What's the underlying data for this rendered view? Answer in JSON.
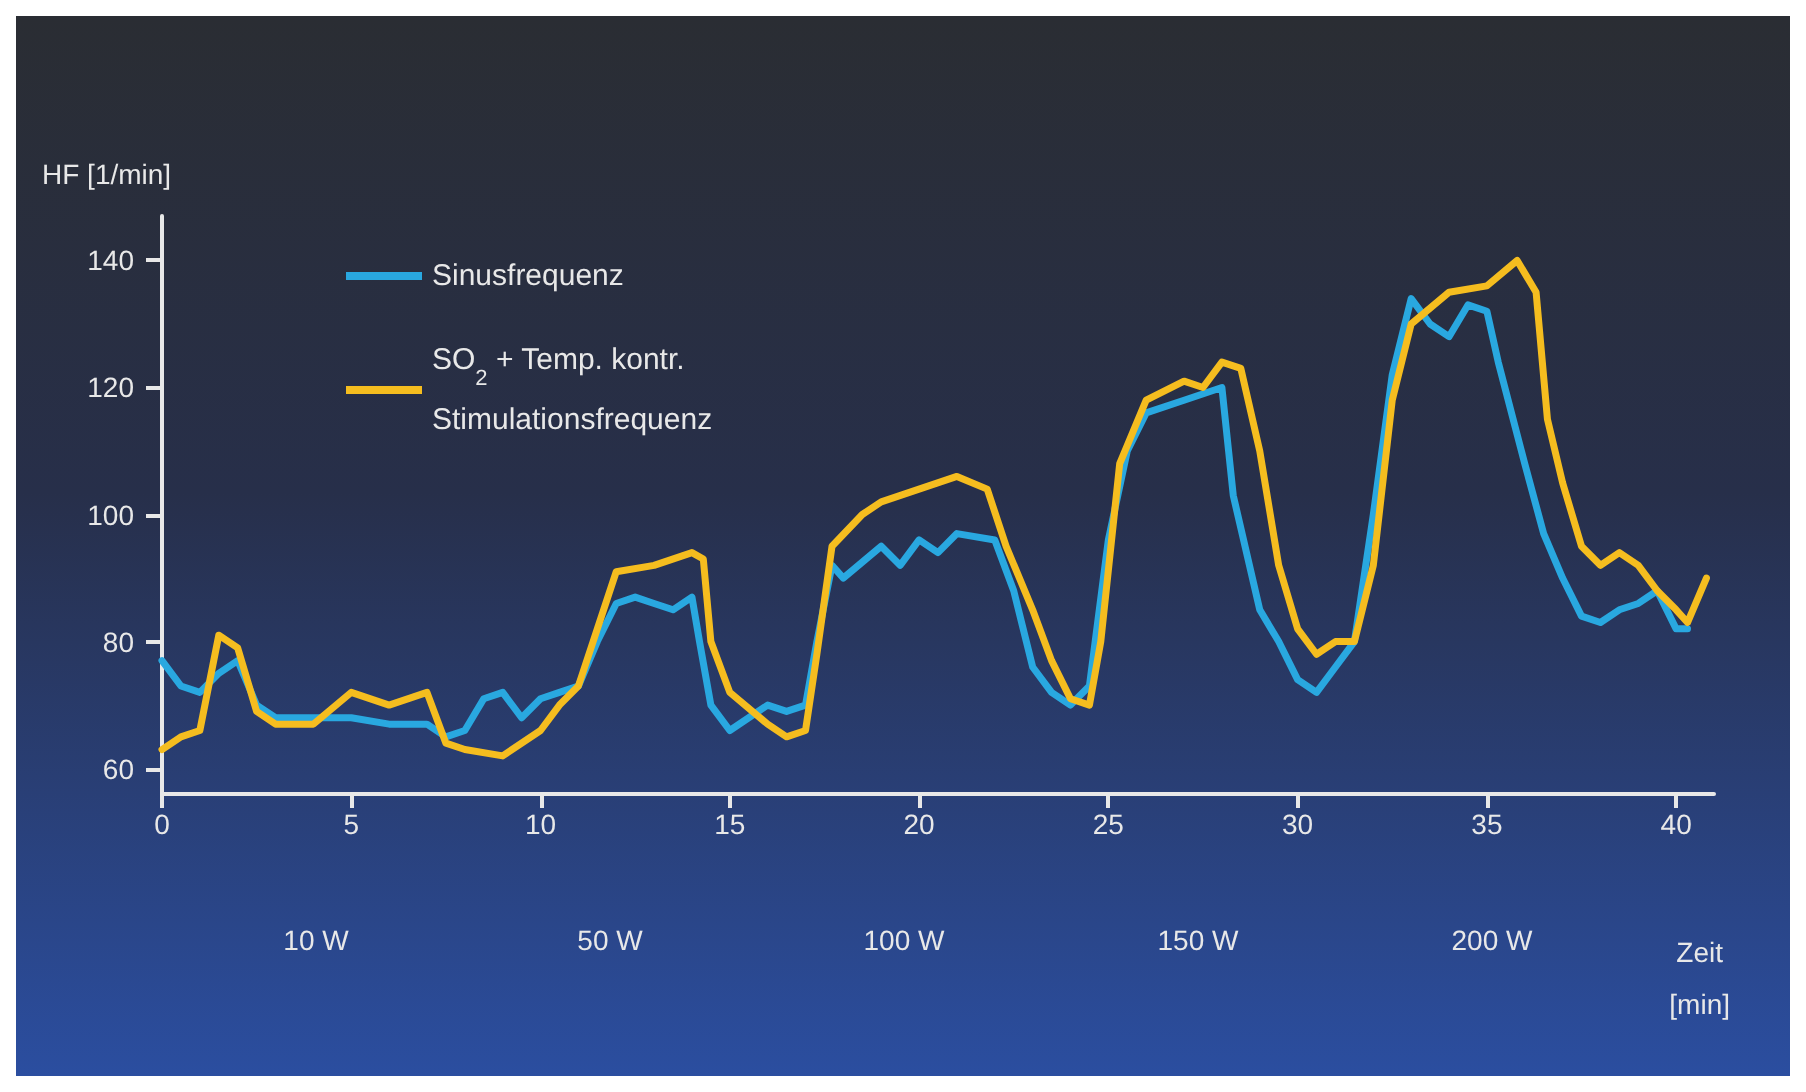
{
  "chart_data": {
    "type": "line",
    "xlabel": "Zeit [min]",
    "ylabel": "HF [1/min]",
    "xlim": [
      0,
      41
    ],
    "xticks": [
      0,
      5,
      10,
      15,
      20,
      25,
      30,
      35,
      40
    ],
    "ylim": [
      56,
      147
    ],
    "yticks": [
      60,
      80,
      100,
      120,
      140
    ],
    "grid": false,
    "legend": "top left",
    "marker": "none",
    "line_style": "solid",
    "series": [
      {
        "name": "Sinusfrequenz",
        "color": "#29a8e0",
        "x": [
          0,
          0.5,
          1,
          1.5,
          2,
          2.5,
          3,
          4,
          5,
          6,
          7,
          7.5,
          8,
          8.5,
          9,
          9.5,
          10,
          10.5,
          11,
          11.5,
          12,
          12.5,
          13,
          13.5,
          14,
          14.2,
          14.5,
          15,
          15.5,
          16,
          16.5,
          17,
          17.3,
          17.7,
          18,
          19,
          19.5,
          20,
          20.5,
          21,
          22,
          22.5,
          23,
          23.5,
          24,
          24.5,
          25,
          25.5,
          26,
          27,
          28,
          28.3,
          29,
          29.5,
          30,
          30.5,
          31,
          31.5,
          32,
          32.5,
          33,
          33.5,
          34,
          34.5,
          35,
          35.3,
          36,
          36.5,
          37,
          37.5,
          38,
          38.5,
          39,
          39.5,
          40,
          40.3
        ],
        "values": [
          77,
          73,
          72,
          75,
          77,
          70,
          68,
          68,
          68,
          67,
          67,
          65,
          66,
          71,
          72,
          68,
          71,
          72,
          73,
          80,
          86,
          87,
          86,
          85,
          87,
          80,
          70,
          66,
          68,
          70,
          69,
          70,
          80,
          92,
          90,
          95,
          92,
          96,
          94,
          97,
          96,
          88,
          76,
          72,
          70,
          73,
          96,
          110,
          116,
          118,
          120,
          103,
          85,
          80,
          74,
          72,
          76,
          80,
          100,
          122,
          134,
          130,
          128,
          133,
          132,
          124,
          108,
          97,
          90,
          84,
          83,
          85,
          86,
          88,
          82,
          82
        ]
      },
      {
        "name": "SO$_{2}$ + Temp. kontr. Stimulationsfrequenz",
        "color": "#f5bd1f",
        "x": [
          0,
          0.5,
          1,
          1.5,
          2,
          2.5,
          3,
          4,
          5,
          6,
          7,
          7.5,
          8,
          9,
          10,
          10.5,
          11,
          11.5,
          12,
          13,
          14,
          14.3,
          14.5,
          15,
          16,
          16.5,
          17,
          17.3,
          17.7,
          18.5,
          19,
          20,
          21,
          21.8,
          22.3,
          23,
          23.5,
          24,
          24.5,
          24.8,
          25.3,
          26,
          27,
          27.5,
          28,
          28.5,
          29,
          29.5,
          30,
          30.5,
          31,
          31.5,
          32,
          32.5,
          33,
          34,
          35,
          35.8,
          36.3,
          36.6,
          37,
          37.5,
          38,
          38.5,
          39,
          39.5,
          40,
          40.3,
          40.8
        ],
        "values": [
          63,
          65,
          66,
          81,
          79,
          69,
          67,
          67,
          72,
          70,
          72,
          64,
          63,
          62,
          66,
          70,
          73,
          82,
          91,
          92,
          94,
          93,
          80,
          72,
          67,
          65,
          66,
          78,
          95,
          100,
          102,
          104,
          106,
          104,
          95,
          85,
          77,
          71,
          70,
          80,
          108,
          118,
          121,
          120,
          124,
          123,
          110,
          92,
          82,
          78,
          80,
          80,
          92,
          118,
          130,
          135,
          136,
          140,
          135,
          115,
          105,
          95,
          92,
          94,
          92,
          88,
          85,
          83,
          90
        ]
      }
    ],
    "annotations": [
      "10 W",
      "50 W",
      "100 W",
      "150 W",
      "200 W"
    ]
  }
}
